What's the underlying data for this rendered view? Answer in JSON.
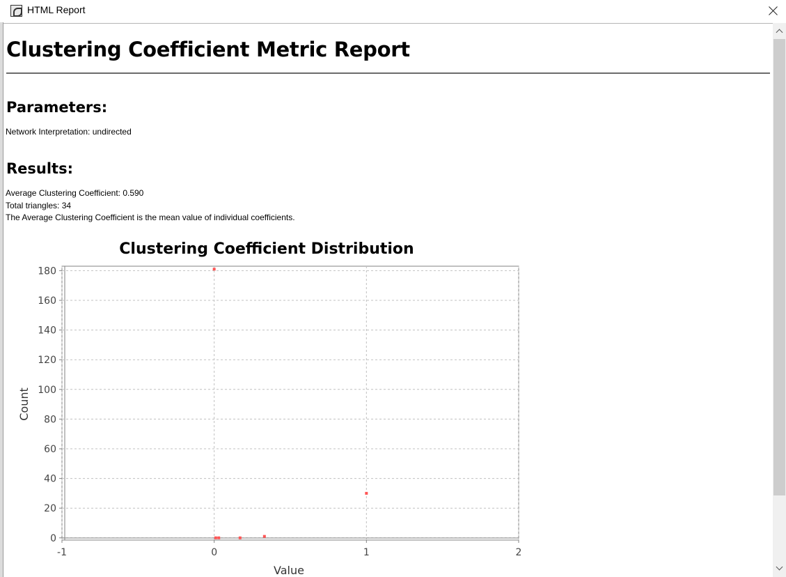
{
  "window": {
    "title": "HTML Report"
  },
  "report": {
    "title": "Clustering Coefficient Metric Report",
    "parameters_heading": "Parameters:",
    "parameters": [
      "Network Interpretation: undirected"
    ],
    "results_heading": "Results:",
    "results": [
      "Average Clustering Coefficient: 0.590",
      "Total triangles: 34",
      "The Average Clustering Coefficient is the mean value of individual coefficients."
    ]
  },
  "chart_data": {
    "type": "scatter",
    "title": "Clustering Coefficient Distribution",
    "xlabel": "Value",
    "ylabel": "Count",
    "xlim": [
      -1,
      2
    ],
    "ylim": [
      -1.5,
      183
    ],
    "xticks": [
      -1,
      0,
      1,
      2
    ],
    "yticks": [
      0,
      20,
      40,
      60,
      80,
      100,
      120,
      140,
      160,
      180
    ],
    "grid": true,
    "point_color": "#ff5555",
    "points": [
      {
        "x": 0.0,
        "y": 181
      },
      {
        "x": 0.01,
        "y": 0
      },
      {
        "x": 0.03,
        "y": 0
      },
      {
        "x": 0.17,
        "y": 0
      },
      {
        "x": 0.33,
        "y": 1
      },
      {
        "x": 1.0,
        "y": 30
      }
    ]
  }
}
